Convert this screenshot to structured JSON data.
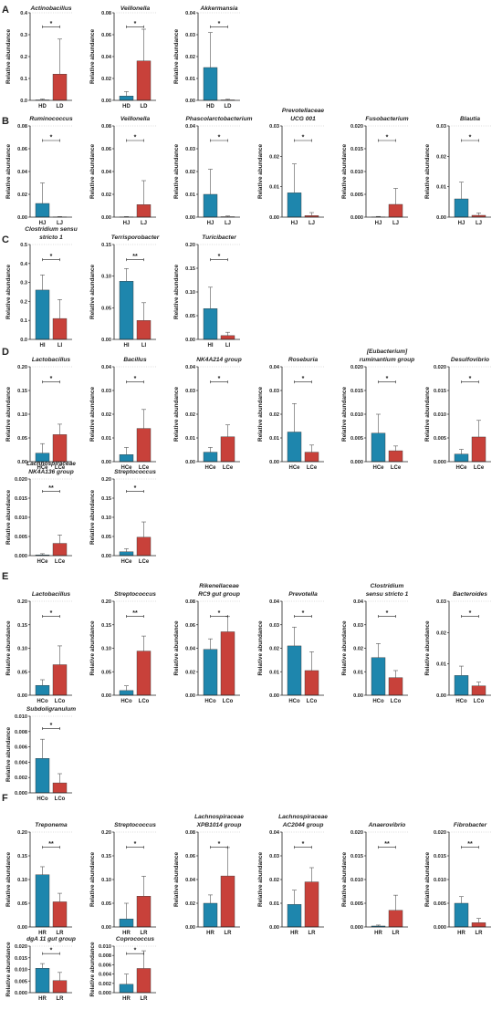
{
  "colors": {
    "high": "#1e86ad",
    "low": "#c8413a",
    "axis": "#222222",
    "grid": "#bbbbbb"
  },
  "ylabel": "Relative abundance",
  "panels": [
    {
      "letter": "A",
      "charts": [
        {
          "title": [
            "Actinobacillus"
          ],
          "categories": [
            "HD",
            "LD"
          ],
          "values": [
            0.002,
            0.12
          ],
          "errors": [
            0.004,
            0.16
          ],
          "yticks": [
            "0.0",
            "0.1",
            "0.2",
            "0.3",
            "0.4"
          ],
          "ylim": [
            0,
            0.4
          ],
          "sig": "*"
        },
        {
          "title": [
            "Veillonella"
          ],
          "categories": [
            "HD",
            "LD"
          ],
          "values": [
            0.004,
            0.036
          ],
          "errors": [
            0.004,
            0.029
          ],
          "yticks": [
            "0.00",
            "0.02",
            "0.04",
            "0.06",
            "0.08"
          ],
          "ylim": [
            0,
            0.08
          ],
          "sig": "*"
        },
        {
          "title": [
            "Akkermansia"
          ],
          "categories": [
            "HD",
            "LD"
          ],
          "values": [
            0.015,
            0.0002
          ],
          "errors": [
            0.016,
            0.0003
          ],
          "yticks": [
            "0.00",
            "0.01",
            "0.02",
            "0.03",
            "0.04"
          ],
          "ylim": [
            0,
            0.04
          ],
          "sig": "*"
        }
      ]
    },
    {
      "letter": "B",
      "charts": [
        {
          "title": [
            "Ruminococcus"
          ],
          "categories": [
            "HJ",
            "LJ"
          ],
          "values": [
            0.012,
            0.0002
          ],
          "errors": [
            0.018,
            0.0003
          ],
          "yticks": [
            "0.00",
            "0.02",
            "0.04",
            "0.06",
            "0.08"
          ],
          "ylim": [
            0,
            0.08
          ],
          "sig": "*"
        },
        {
          "title": [
            "Veillonella"
          ],
          "categories": [
            "HJ",
            "LJ"
          ],
          "values": [
            0.0002,
            0.011
          ],
          "errors": [
            0.0003,
            0.021
          ],
          "yticks": [
            "0.00",
            "0.02",
            "0.04",
            "0.06",
            "0.08"
          ],
          "ylim": [
            0,
            0.08
          ],
          "sig": "*"
        },
        {
          "title": [
            "Phascolarctobacterium"
          ],
          "categories": [
            "HJ",
            "LJ"
          ],
          "values": [
            0.01,
            0.0002
          ],
          "errors": [
            0.011,
            0.0003
          ],
          "yticks": [
            "0.00",
            "0.01",
            "0.02",
            "0.03",
            "0.04"
          ],
          "ylim": [
            0,
            0.04
          ],
          "sig": "*"
        },
        {
          "title": [
            "Prevotellaceae",
            "UCG 001"
          ],
          "categories": [
            "HJ",
            "LJ"
          ],
          "values": [
            0.008,
            0.0005
          ],
          "errors": [
            0.0095,
            0.001
          ],
          "yticks": [
            "0.00",
            "0.01",
            "0.02",
            "0.03"
          ],
          "ylim": [
            0,
            0.03
          ],
          "sig": "*"
        },
        {
          "title": [
            "Fusobacterium"
          ],
          "categories": [
            "HJ",
            "LJ"
          ],
          "values": [
            5e-05,
            0.0028
          ],
          "errors": [
            0.0001,
            0.0035
          ],
          "yticks": [
            "0.000",
            "0.005",
            "0.010",
            "0.015",
            "0.020"
          ],
          "ylim": [
            0,
            0.02
          ],
          "sig": "*"
        },
        {
          "title": [
            "Blautia"
          ],
          "categories": [
            "HJ",
            "LJ"
          ],
          "values": [
            0.006,
            0.0006
          ],
          "errors": [
            0.0055,
            0.0008
          ],
          "yticks": [
            "0.00",
            "0.01",
            "0.02",
            "0.03"
          ],
          "ylim": [
            0,
            0.03
          ],
          "sig": "*"
        }
      ]
    },
    {
      "letter": "C",
      "charts": [
        {
          "title": [
            "Clostridium sensu",
            "stricto 1"
          ],
          "categories": [
            "HI",
            "LI"
          ],
          "values": [
            0.26,
            0.11
          ],
          "errors": [
            0.08,
            0.1
          ],
          "yticks": [
            "0.0",
            "0.1",
            "0.2",
            "0.3",
            "0.4",
            "0.5"
          ],
          "ylim": [
            0,
            0.5
          ],
          "sig": "*"
        },
        {
          "title": [
            "Terrisporobacter"
          ],
          "categories": [
            "HI",
            "LI"
          ],
          "values": [
            0.092,
            0.03
          ],
          "errors": [
            0.02,
            0.028
          ],
          "yticks": [
            "0.00",
            "0.05",
            "0.10",
            "0.15"
          ],
          "ylim": [
            0,
            0.15
          ],
          "sig": "**"
        },
        {
          "title": [
            "Turicibacter"
          ],
          "categories": [
            "HI",
            "LI"
          ],
          "values": [
            0.065,
            0.008
          ],
          "errors": [
            0.045,
            0.007
          ],
          "yticks": [
            "0.00",
            "0.05",
            "0.10",
            "0.15",
            "0.20"
          ],
          "ylim": [
            0,
            0.2
          ],
          "sig": "*"
        }
      ]
    },
    {
      "letter": "D",
      "charts": [
        {
          "title": [
            "Lactobacillus"
          ],
          "categories": [
            "HCe",
            "LCe"
          ],
          "values": [
            0.018,
            0.057
          ],
          "errors": [
            0.02,
            0.022
          ],
          "yticks": [
            "0.00",
            "0.05",
            "0.10",
            "0.15",
            "0.20"
          ],
          "ylim": [
            0,
            0.2
          ],
          "sig": "*"
        },
        {
          "title": [
            "Bacillus"
          ],
          "categories": [
            "HCe",
            "LCe"
          ],
          "values": [
            0.003,
            0.014
          ],
          "errors": [
            0.003,
            0.008
          ],
          "yticks": [
            "0.00",
            "0.01",
            "0.02",
            "0.03",
            "0.04"
          ],
          "ylim": [
            0,
            0.04
          ],
          "sig": "*"
        },
        {
          "title": [
            "NK4A214 group"
          ],
          "categories": [
            "HCe",
            "LCe"
          ],
          "values": [
            0.004,
            0.0105
          ],
          "errors": [
            0.002,
            0.005
          ],
          "yticks": [
            "0.00",
            "0.01",
            "0.02",
            "0.03",
            "0.04"
          ],
          "ylim": [
            0,
            0.04
          ],
          "sig": "*"
        },
        {
          "title": [
            "Roseburia"
          ],
          "categories": [
            "HCe",
            "LCe"
          ],
          "values": [
            0.0125,
            0.004
          ],
          "errors": [
            0.012,
            0.003
          ],
          "yticks": [
            "0.00",
            "0.01",
            "0.02",
            "0.03",
            "0.04"
          ],
          "ylim": [
            0,
            0.04
          ],
          "sig": "*"
        },
        {
          "title": [
            "[Eubacterium]",
            "ruminantium group"
          ],
          "categories": [
            "HCe",
            "LCe"
          ],
          "values": [
            0.006,
            0.0023
          ],
          "errors": [
            0.004,
            0.001
          ],
          "yticks": [
            "0.000",
            "0.005",
            "0.010",
            "0.015",
            "0.020"
          ],
          "ylim": [
            0,
            0.02
          ],
          "sig": "*"
        },
        {
          "title": [
            "Desulfovibrio"
          ],
          "categories": [
            "HCe",
            "LCe"
          ],
          "values": [
            0.0016,
            0.0052
          ],
          "errors": [
            0.001,
            0.0035
          ],
          "yticks": [
            "0.000",
            "0.005",
            "0.010",
            "0.015",
            "0.020"
          ],
          "ylim": [
            0,
            0.02
          ],
          "sig": "*"
        }
      ]
    },
    {
      "letter": "",
      "charts": [
        {
          "title": [
            "Lachnospiraceae",
            "NK4A136 group"
          ],
          "categories": [
            "HCe",
            "LCe"
          ],
          "values": [
            0.0002,
            0.0032
          ],
          "errors": [
            0.0003,
            0.0022
          ],
          "yticks": [
            "0.000",
            "0.005",
            "0.010",
            "0.015",
            "0.020"
          ],
          "ylim": [
            0,
            0.02
          ],
          "sig": "**"
        },
        {
          "title": [
            "Streptococcus"
          ],
          "categories": [
            "HCe",
            "LCe"
          ],
          "values": [
            0.01,
            0.048
          ],
          "errors": [
            0.008,
            0.04
          ],
          "yticks": [
            "0.00",
            "0.05",
            "0.10",
            "0.15",
            "0.20"
          ],
          "ylim": [
            0,
            0.2
          ],
          "sig": "*"
        }
      ]
    },
    {
      "letter": "E",
      "charts": [
        {
          "title": [
            "Lactobacillus"
          ],
          "categories": [
            "HCo",
            "LCo"
          ],
          "values": [
            0.021,
            0.065
          ],
          "errors": [
            0.012,
            0.04
          ],
          "yticks": [
            "0.00",
            "0.05",
            "0.10",
            "0.15",
            "0.20"
          ],
          "ylim": [
            0,
            0.2
          ],
          "sig": "*"
        },
        {
          "title": [
            "Streptococcus"
          ],
          "categories": [
            "HCo",
            "LCo"
          ],
          "values": [
            0.01,
            0.094
          ],
          "errors": [
            0.01,
            0.032
          ],
          "yticks": [
            "0.00",
            "0.05",
            "0.10",
            "0.15",
            "0.20"
          ],
          "ylim": [
            0,
            0.2
          ],
          "sig": "**"
        },
        {
          "title": [
            "Rikenellaceae",
            "RC9 gut group"
          ],
          "categories": [
            "HCo",
            "LCo"
          ],
          "values": [
            0.039,
            0.054
          ],
          "errors": [
            0.009,
            0.013
          ],
          "yticks": [
            "0.00",
            "0.02",
            "0.04",
            "0.06",
            "0.08"
          ],
          "ylim": [
            0,
            0.08
          ],
          "sig": "*"
        },
        {
          "title": [
            "Prevotella"
          ],
          "categories": [
            "HCo",
            "LCo"
          ],
          "values": [
            0.021,
            0.0105
          ],
          "errors": [
            0.008,
            0.008
          ],
          "yticks": [
            "0.00",
            "0.01",
            "0.02",
            "0.03",
            "0.04"
          ],
          "ylim": [
            0,
            0.04
          ],
          "sig": "*"
        },
        {
          "title": [
            "Clostridium",
            "sensu stricto 1"
          ],
          "categories": [
            "HCo",
            "LCo"
          ],
          "values": [
            0.016,
            0.0075
          ],
          "errors": [
            0.006,
            0.003
          ],
          "yticks": [
            "0.00",
            "0.01",
            "0.02",
            "0.03",
            "0.04"
          ],
          "ylim": [
            0,
            0.04
          ],
          "sig": "*"
        },
        {
          "title": [
            "Bacteroides"
          ],
          "categories": [
            "HCo",
            "LCo"
          ],
          "values": [
            0.0063,
            0.003
          ],
          "errors": [
            0.003,
            0.0012
          ],
          "yticks": [
            "0.00",
            "0.01",
            "0.02",
            "0.03"
          ],
          "ylim": [
            0,
            0.03
          ],
          "sig": "*"
        }
      ]
    },
    {
      "letter": "",
      "charts": [
        {
          "title": [
            "Subdoligranulum"
          ],
          "categories": [
            "HCo",
            "LCo"
          ],
          "values": [
            0.0045,
            0.0013
          ],
          "errors": [
            0.0025,
            0.0012
          ],
          "yticks": [
            "0.000",
            "0.002",
            "0.004",
            "0.006",
            "0.008",
            "0.010"
          ],
          "ylim": [
            0,
            0.01
          ],
          "sig": "*"
        }
      ]
    },
    {
      "letter": "F",
      "charts": [
        {
          "title": [
            "Treponema"
          ],
          "categories": [
            "HR",
            "LR"
          ],
          "values": [
            0.11,
            0.053
          ],
          "errors": [
            0.017,
            0.018
          ],
          "yticks": [
            "0.00",
            "0.05",
            "0.10",
            "0.15",
            "0.20"
          ],
          "ylim": [
            0,
            0.2
          ],
          "sig": "**"
        },
        {
          "title": [
            "Streptococcus"
          ],
          "categories": [
            "HR",
            "LR"
          ],
          "values": [
            0.017,
            0.065
          ],
          "errors": [
            0.033,
            0.042
          ],
          "yticks": [
            "0.00",
            "0.05",
            "0.10",
            "0.15",
            "0.20"
          ],
          "ylim": [
            0,
            0.2
          ],
          "sig": "*"
        },
        {
          "title": [
            "Lachnospiraceae",
            "XPB1014 group"
          ],
          "categories": [
            "HR",
            "LR"
          ],
          "values": [
            0.02,
            0.043
          ],
          "errors": [
            0.007,
            0.024
          ],
          "yticks": [
            "0.00",
            "0.02",
            "0.04",
            "0.06",
            "0.08"
          ],
          "ylim": [
            0,
            0.08
          ],
          "sig": "*"
        },
        {
          "title": [
            "Lachnospiraceae",
            "AC2044 group"
          ],
          "categories": [
            "HR",
            "LR"
          ],
          "values": [
            0.0095,
            0.019
          ],
          "errors": [
            0.006,
            0.006
          ],
          "yticks": [
            "0.00",
            "0.01",
            "0.02",
            "0.03",
            "0.04"
          ],
          "ylim": [
            0,
            0.04
          ],
          "sig": "*"
        },
        {
          "title": [
            "Anaerovibrio"
          ],
          "categories": [
            "HR",
            "LR"
          ],
          "values": [
            0.0002,
            0.0035
          ],
          "errors": [
            0.0002,
            0.0032
          ],
          "yticks": [
            "0.000",
            "0.005",
            "0.010",
            "0.015",
            "0.020"
          ],
          "ylim": [
            0,
            0.02
          ],
          "sig": "**"
        },
        {
          "title": [
            "Fibrobacter"
          ],
          "categories": [
            "HR",
            "LR"
          ],
          "values": [
            0.005,
            0.0009
          ],
          "errors": [
            0.0014,
            0.0009
          ],
          "yticks": [
            "0.000",
            "0.005",
            "0.010",
            "0.015",
            "0.020"
          ],
          "ylim": [
            0,
            0.02
          ],
          "sig": "**"
        }
      ]
    },
    {
      "letter": "",
      "charts": [
        {
          "title": [
            "dgA 11 gut group"
          ],
          "categories": [
            "HR",
            "LR"
          ],
          "values": [
            0.0105,
            0.0052
          ],
          "errors": [
            0.002,
            0.0035
          ],
          "yticks": [
            "0.000",
            "0.005",
            "0.010",
            "0.015",
            "0.020"
          ],
          "ylim": [
            0,
            0.02
          ],
          "sig": "*"
        },
        {
          "title": [
            "Coprococcus"
          ],
          "categories": [
            "HR",
            "LR"
          ],
          "values": [
            0.0018,
            0.0052
          ],
          "errors": [
            0.0022,
            0.0038
          ],
          "yticks": [
            "0.000",
            "0.002",
            "0.004",
            "0.006",
            "0.008",
            "0.010"
          ],
          "ylim": [
            0,
            0.01
          ],
          "sig": "*"
        }
      ]
    }
  ],
  "chart_data": {
    "type": "bar",
    "description_source": "panels",
    "series": [
      {
        "name": "",
        "values": []
      }
    ]
  }
}
